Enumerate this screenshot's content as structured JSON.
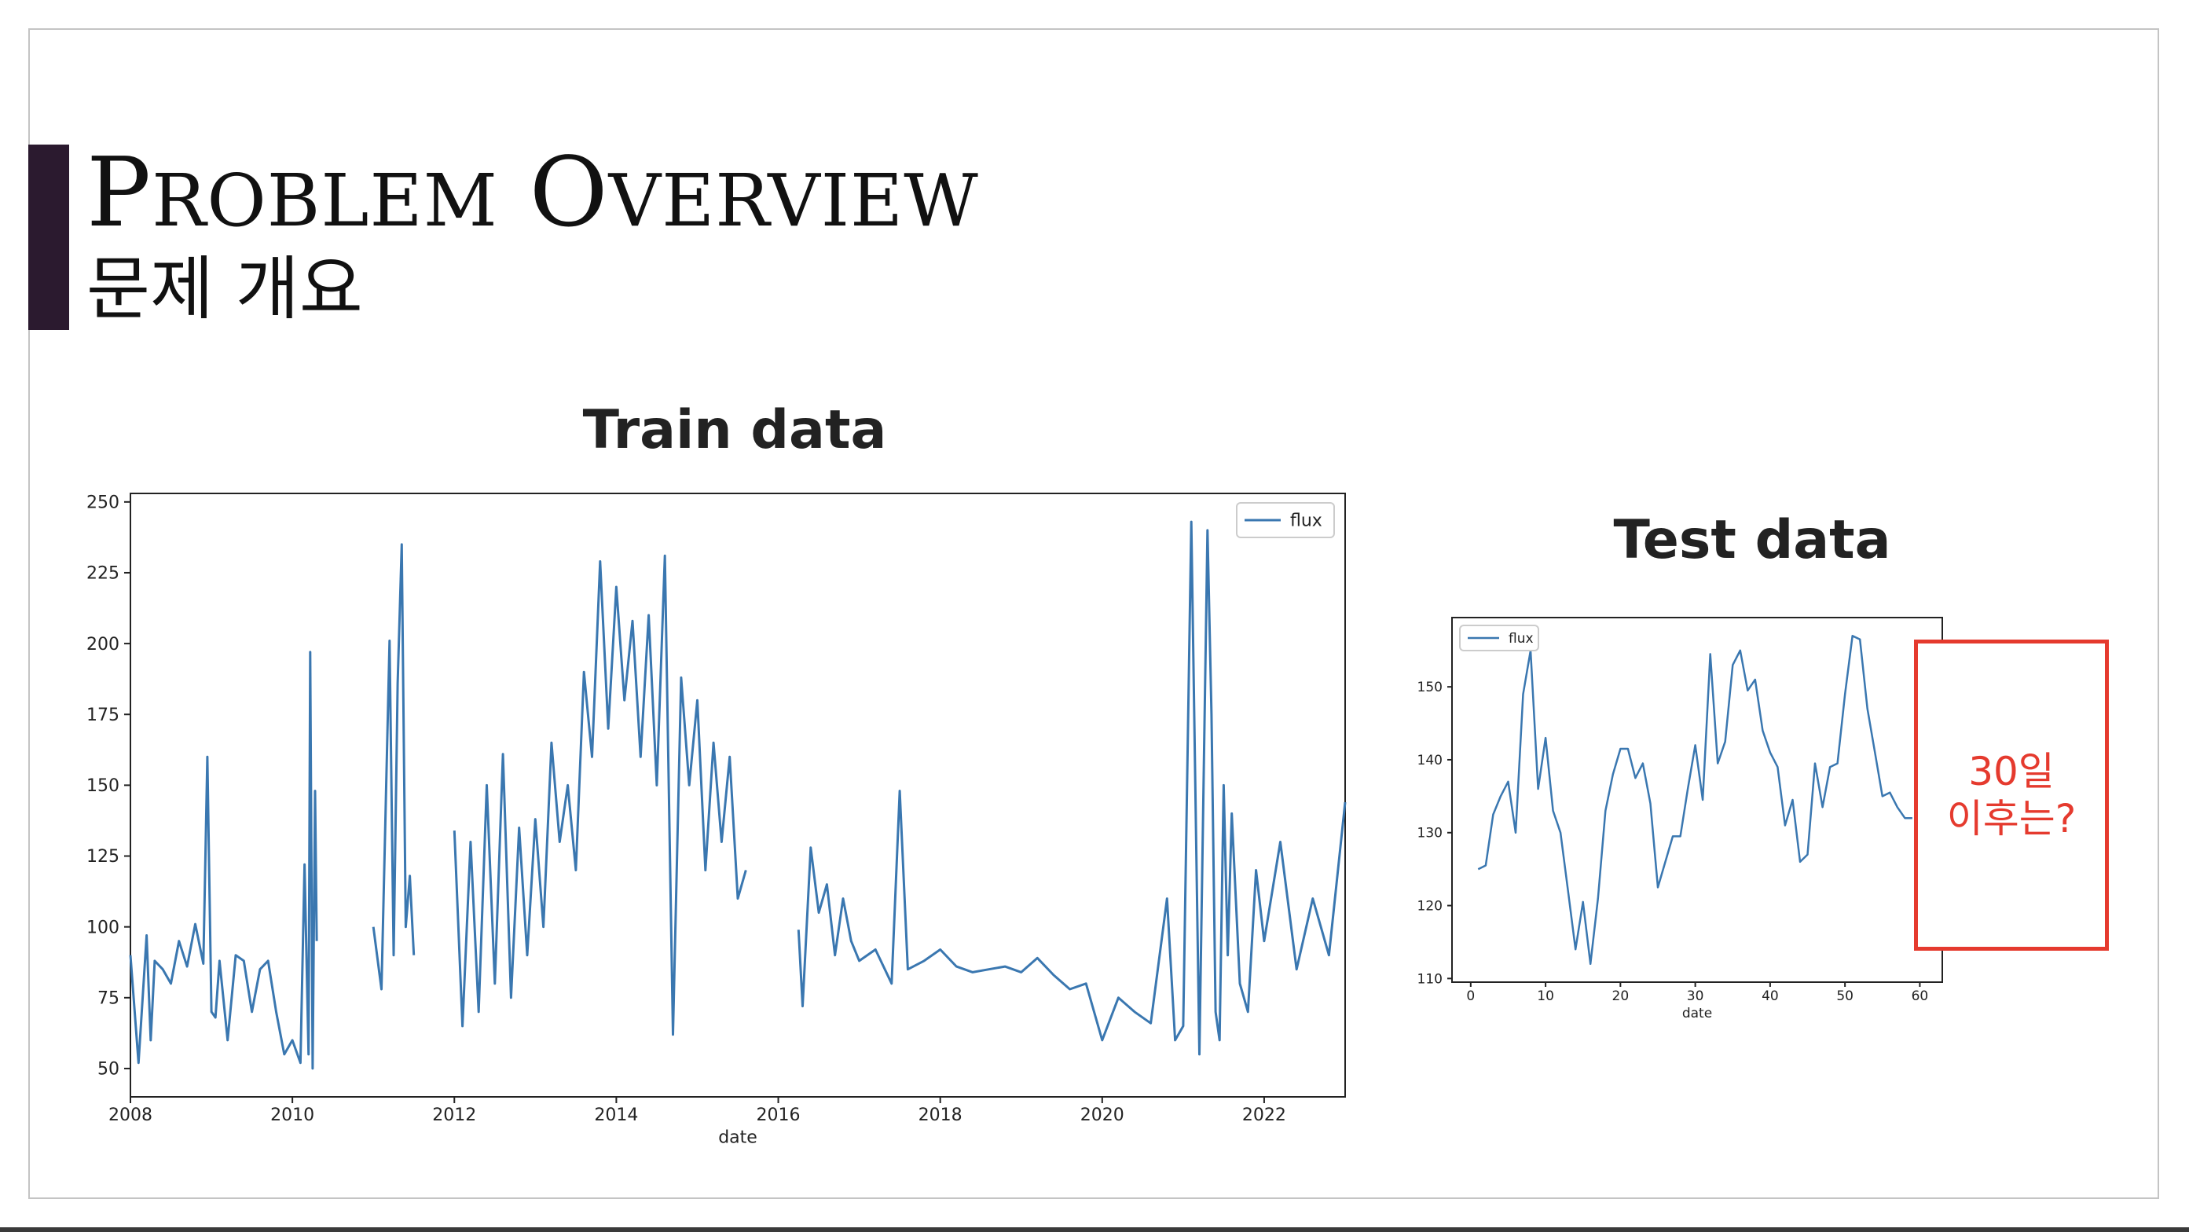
{
  "slide": {
    "title_en_first": "P",
    "title_en_first_rest": "ROBLEM",
    "title_en_second": "O",
    "title_en_second_rest": "VERVIEW",
    "title_ko": "문제 개요",
    "accent_color": "#2b1a2f",
    "callout_line1": "30일",
    "callout_line2": "이후는?",
    "callout_color": "#e53a2e"
  },
  "chart_data": [
    {
      "type": "line",
      "title": "Train data",
      "xlabel": "date",
      "ylabel": "",
      "legend": [
        "flux"
      ],
      "legend_position": "top-right",
      "grid": false,
      "color": "#3a77b0",
      "xlim": [
        2008.0,
        2023.0
      ],
      "ylim": [
        40,
        253
      ],
      "xticks": [
        "2008",
        "2010",
        "2012",
        "2014",
        "2016",
        "2018",
        "2020",
        "2022"
      ],
      "yticks": [
        "50",
        "75",
        "100",
        "125",
        "150",
        "175",
        "200",
        "225",
        "250"
      ],
      "series": [
        {
          "name": "flux",
          "segments": [
            {
              "x": [
                2008.0,
                2008.1,
                2008.2,
                2008.25,
                2008.3,
                2008.4,
                2008.5,
                2008.6,
                2008.7,
                2008.8,
                2008.9,
                2008.95,
                2009.0,
                2009.05,
                2009.1,
                2009.2,
                2009.3,
                2009.4,
                2009.5,
                2009.6,
                2009.7,
                2009.8,
                2009.9,
                2010.0,
                2010.1,
                2010.15,
                2010.2,
                2010.22,
                2010.25,
                2010.28,
                2010.3
              ],
              "y": [
                90,
                52,
                97,
                60,
                88,
                85,
                80,
                95,
                86,
                101,
                87,
                160,
                70,
                68,
                88,
                60,
                90,
                88,
                70,
                85,
                88,
                70,
                55,
                60,
                52,
                122,
                55,
                197,
                50,
                148,
                95
              ]
            },
            {
              "x": [
                2011.0,
                2011.1,
                2011.2,
                2011.25,
                2011.3,
                2011.35,
                2011.4,
                2011.45,
                2011.5
              ],
              "y": [
                100,
                78,
                201,
                90,
                186,
                235,
                100,
                118,
                90
              ]
            },
            {
              "x": [
                2012.0,
                2012.1,
                2012.2,
                2012.3,
                2012.4,
                2012.5,
                2012.6,
                2012.7,
                2012.8,
                2012.9,
                2013.0,
                2013.1,
                2013.2,
                2013.3,
                2013.4,
                2013.5,
                2013.6,
                2013.7,
                2013.8,
                2013.9,
                2014.0,
                2014.1,
                2014.2,
                2014.3,
                2014.4,
                2014.5,
                2014.6,
                2014.7,
                2014.8,
                2014.9,
                2015.0,
                2015.1,
                2015.2,
                2015.3,
                2015.4,
                2015.5,
                2015.6
              ],
              "y": [
                134,
                65,
                130,
                70,
                150,
                80,
                161,
                75,
                135,
                90,
                138,
                100,
                165,
                130,
                150,
                120,
                190,
                160,
                229,
                170,
                220,
                180,
                208,
                160,
                210,
                150,
                231,
                62,
                188,
                150,
                180,
                120,
                165,
                130,
                160,
                110,
                120
              ]
            },
            {
              "x": [
                2016.25,
                2016.3,
                2016.4,
                2016.5,
                2016.6,
                2016.7,
                2016.8,
                2016.9,
                2017.0,
                2017.2,
                2017.4,
                2017.5,
                2017.6,
                2017.8,
                2018.0,
                2018.2,
                2018.4,
                2018.6,
                2018.8,
                2019.0,
                2019.2,
                2019.4,
                2019.6,
                2019.8,
                2020.0,
                2020.2,
                2020.4,
                2020.6,
                2020.8,
                2020.9,
                2021.0,
                2021.1,
                2021.2,
                2021.3,
                2021.35,
                2021.4,
                2021.45,
                2021.5,
                2021.55,
                2021.6,
                2021.7,
                2021.8,
                2021.9,
                2022.0,
                2022.2,
                2022.4,
                2022.6,
                2022.8,
                2023.0
              ],
              "y": [
                99,
                72,
                128,
                105,
                115,
                90,
                110,
                95,
                88,
                92,
                80,
                148,
                85,
                88,
                92,
                86,
                84,
                85,
                86,
                84,
                89,
                83,
                78,
                80,
                60,
                75,
                70,
                66,
                110,
                60,
                65,
                243,
                55,
                240,
                175,
                70,
                60,
                150,
                90,
                140,
                80,
                70,
                120,
                95,
                130,
                85,
                110,
                90,
                144
              ]
            }
          ]
        }
      ]
    },
    {
      "type": "line",
      "title": "Test data",
      "xlabel": "date",
      "ylabel": "",
      "legend": [
        "flux"
      ],
      "legend_position": "top-left",
      "grid": false,
      "color": "#3a77b0",
      "xlim": [
        -2.5,
        63.0
      ],
      "ylim": [
        109.5,
        159.5
      ],
      "xticks": [
        "0",
        "10",
        "20",
        "30",
        "40",
        "50",
        "60"
      ],
      "yticks": [
        "110",
        "120",
        "130",
        "140",
        "150"
      ],
      "series": [
        {
          "name": "flux",
          "x": [
            1,
            2,
            3,
            4,
            5,
            6,
            7,
            8,
            9,
            10,
            11,
            12,
            13,
            14,
            15,
            16,
            17,
            18,
            19,
            20,
            21,
            22,
            23,
            24,
            25,
            26,
            27,
            28,
            29,
            30,
            31,
            32,
            33,
            34,
            35,
            36,
            37,
            38,
            39,
            40,
            41,
            42,
            43,
            44,
            45,
            46,
            47,
            48,
            49,
            50,
            51,
            52,
            53,
            54,
            55,
            56,
            57,
            58,
            59
          ],
          "y": [
            125,
            125.5,
            132.5,
            135,
            137,
            130,
            149,
            155,
            136,
            143,
            133,
            130,
            122,
            114,
            120.5,
            112,
            121,
            133,
            138,
            141.5,
            141.5,
            137.5,
            139.5,
            134,
            122.5,
            126,
            129.5,
            129.5,
            136,
            142,
            134.5,
            154.5,
            139.5,
            142.5,
            153,
            155,
            149.5,
            151,
            144,
            141,
            139,
            131,
            134.5,
            126,
            127,
            139.5,
            133.5,
            139,
            139.5,
            149,
            157,
            156.5,
            147,
            141,
            135,
            135.5,
            133.5,
            132,
            132
          ]
        }
      ]
    }
  ]
}
